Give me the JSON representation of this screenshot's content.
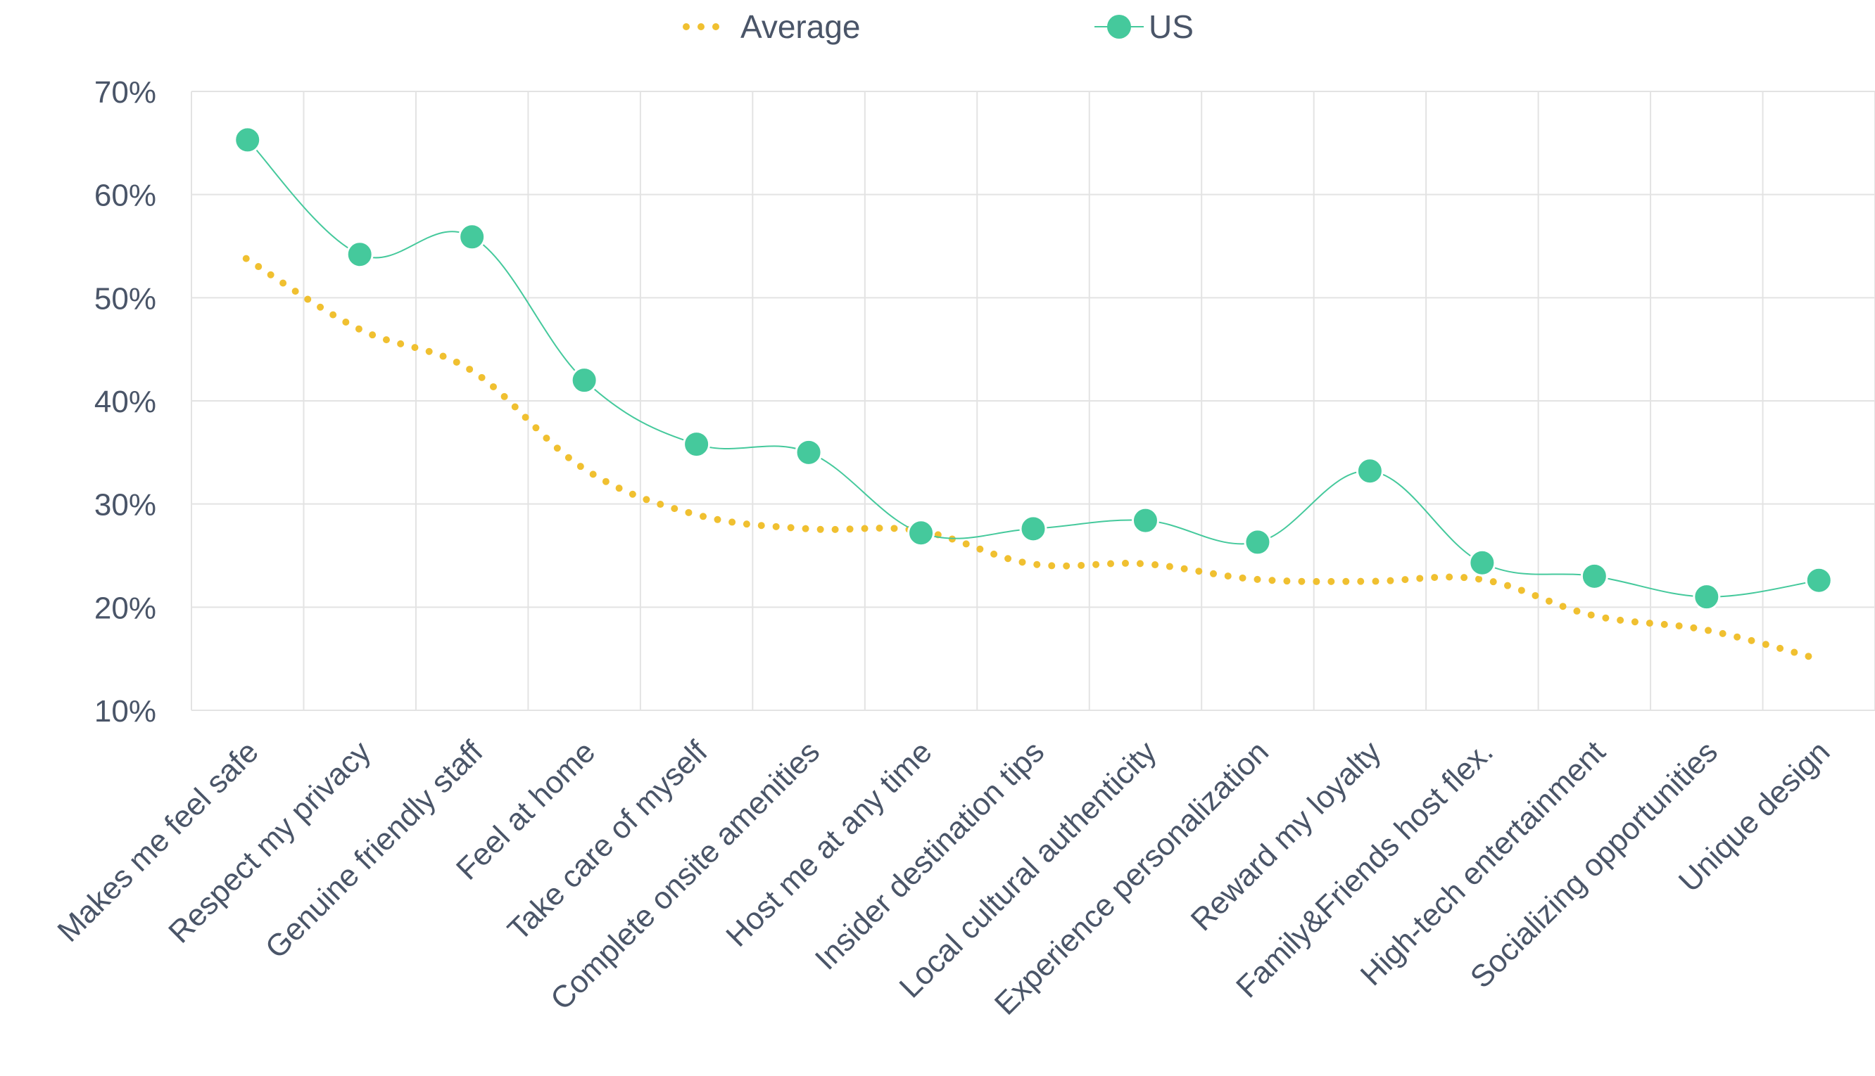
{
  "chart_data": {
    "type": "line",
    "categories": [
      "Makes me feel safe",
      "Respect my privacy",
      "Genuine friendly staff",
      "Feel at home",
      "Take care of myself",
      "Complete onsite amenities",
      "Host me at any time",
      "Insider destination tips",
      "Local cultural authenticity",
      "Experience personalization",
      "Reward my loyalty",
      "Family&Friends host flex.",
      "High-tech entertainment",
      "Socializing opportunities",
      "Unique design"
    ],
    "series": [
      {
        "name": "Average",
        "style": "dotted",
        "markers": false,
        "color": "#f0c030",
        "values": [
          53.8,
          47.0,
          43.0,
          33.5,
          29.0,
          27.6,
          27.4,
          24.2,
          24.2,
          22.7,
          22.5,
          22.7,
          19.2,
          17.8,
          15.0
        ]
      },
      {
        "name": "US",
        "style": "solid",
        "markers": true,
        "color": "#45c99c",
        "values": [
          65.3,
          54.2,
          55.9,
          42.0,
          35.8,
          35.0,
          27.2,
          27.6,
          28.4,
          26.3,
          33.2,
          24.3,
          23.0,
          21.0,
          22.6
        ]
      }
    ],
    "y_ticks": [
      "10%",
      "20%",
      "30%",
      "40%",
      "50%",
      "60%",
      "70%"
    ],
    "ylim": [
      10,
      70
    ],
    "grid": true,
    "legend_position": "top-center",
    "colors": {
      "grid": "#e3e3e3",
      "text": "#4a5568"
    }
  }
}
